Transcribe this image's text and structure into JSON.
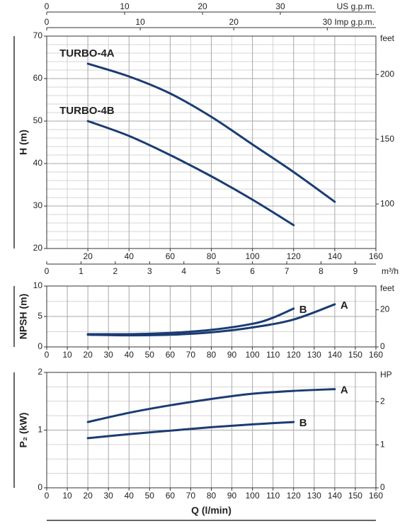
{
  "chart_data": [
    {
      "type": "line",
      "ylabel": "H (m)",
      "xlim": [
        0,
        160
      ],
      "xticks": [
        20,
        40,
        60,
        80,
        100,
        120,
        140,
        160
      ],
      "xminor": [
        10,
        30,
        50,
        70,
        90,
        110,
        130,
        150
      ],
      "ylim": [
        20,
        70
      ],
      "yticks": [
        20,
        30,
        40,
        50,
        60,
        70
      ],
      "yminor": [
        22,
        24,
        26,
        28,
        32,
        34,
        36,
        38,
        42,
        44,
        46,
        48,
        52,
        54,
        56,
        58,
        62,
        64,
        66,
        68
      ],
      "y2label": "feet",
      "y2lim": [
        65.6,
        229.7
      ],
      "y2ticks": [
        100,
        150,
        200
      ],
      "extra_axes": [
        {
          "label": "US g.p.m.",
          "lim": [
            0,
            42.27
          ],
          "ticks": [
            0,
            10,
            20,
            30
          ]
        },
        {
          "label": "Imp g.p.m.",
          "lim": [
            0,
            35.2
          ],
          "ticks": [
            0,
            10,
            20,
            30
          ]
        },
        {
          "label": "m³/h",
          "lim": [
            0,
            9.6
          ],
          "ticks": [
            0,
            1,
            2,
            3,
            4,
            5,
            6,
            7,
            8,
            9
          ]
        }
      ],
      "grid": true,
      "series_label_at": "start",
      "series": [
        {
          "name": "TURBO-4A",
          "color": "#1b3c73",
          "x": [
            20,
            40,
            60,
            80,
            100,
            120,
            140
          ],
          "values": [
            63.5,
            60.5,
            56.5,
            51,
            44.5,
            38,
            31
          ]
        },
        {
          "name": "TURBO-4B",
          "color": "#1b3c73",
          "x": [
            20,
            40,
            60,
            80,
            100,
            120
          ],
          "values": [
            50,
            46.5,
            42,
            37,
            31.5,
            25.5
          ]
        }
      ]
    },
    {
      "type": "line",
      "ylabel": "NPSH (m)",
      "xlim": [
        0,
        160
      ],
      "xticks": [
        0,
        10,
        20,
        30,
        40,
        50,
        60,
        70,
        80,
        90,
        100,
        110,
        120,
        130,
        140,
        150,
        160
      ],
      "ylim": [
        0,
        10
      ],
      "yticks": [
        0,
        5,
        10
      ],
      "yminor": [
        2.5,
        7.5
      ],
      "y2label": "feet",
      "y2lim": [
        0,
        32.81
      ],
      "y2ticks": [
        0,
        20
      ],
      "grid": true,
      "series_label_at": "end",
      "series": [
        {
          "name": "A",
          "color": "#1b3c73",
          "x": [
            20,
            40,
            60,
            80,
            100,
            120,
            140
          ],
          "values": [
            2,
            1.9,
            2,
            2.4,
            3.2,
            4.5,
            7
          ]
        },
        {
          "name": "B",
          "color": "#1b3c73",
          "x": [
            20,
            40,
            60,
            80,
            100,
            110,
            120
          ],
          "values": [
            2.1,
            2.1,
            2.3,
            2.8,
            3.8,
            4.8,
            6.3
          ]
        }
      ]
    },
    {
      "type": "line",
      "ylabel": "P₂ (kW)",
      "xlabel": "Q (l/min)",
      "xlim": [
        0,
        160
      ],
      "xticks": [
        0,
        10,
        20,
        30,
        40,
        50,
        60,
        70,
        80,
        90,
        100,
        110,
        120,
        130,
        140,
        150,
        160
      ],
      "ylim": [
        0,
        2
      ],
      "yticks": [
        0,
        1,
        2
      ],
      "yminor": [
        0.25,
        0.5,
        0.75,
        1.25,
        1.5,
        1.75
      ],
      "y2label": "HP",
      "y2lim": [
        0,
        2.682
      ],
      "y2ticks": [
        0,
        1,
        2
      ],
      "grid": true,
      "series_label_at": "end",
      "series": [
        {
          "name": "A",
          "color": "#1b3c73",
          "x": [
            20,
            40,
            60,
            80,
            100,
            120,
            140
          ],
          "values": [
            1.14,
            1.3,
            1.43,
            1.54,
            1.63,
            1.68,
            1.71
          ]
        },
        {
          "name": "B",
          "color": "#1b3c73",
          "x": [
            20,
            40,
            60,
            80,
            100,
            120
          ],
          "values": [
            0.86,
            0.93,
            0.99,
            1.05,
            1.1,
            1.14
          ]
        }
      ]
    }
  ]
}
